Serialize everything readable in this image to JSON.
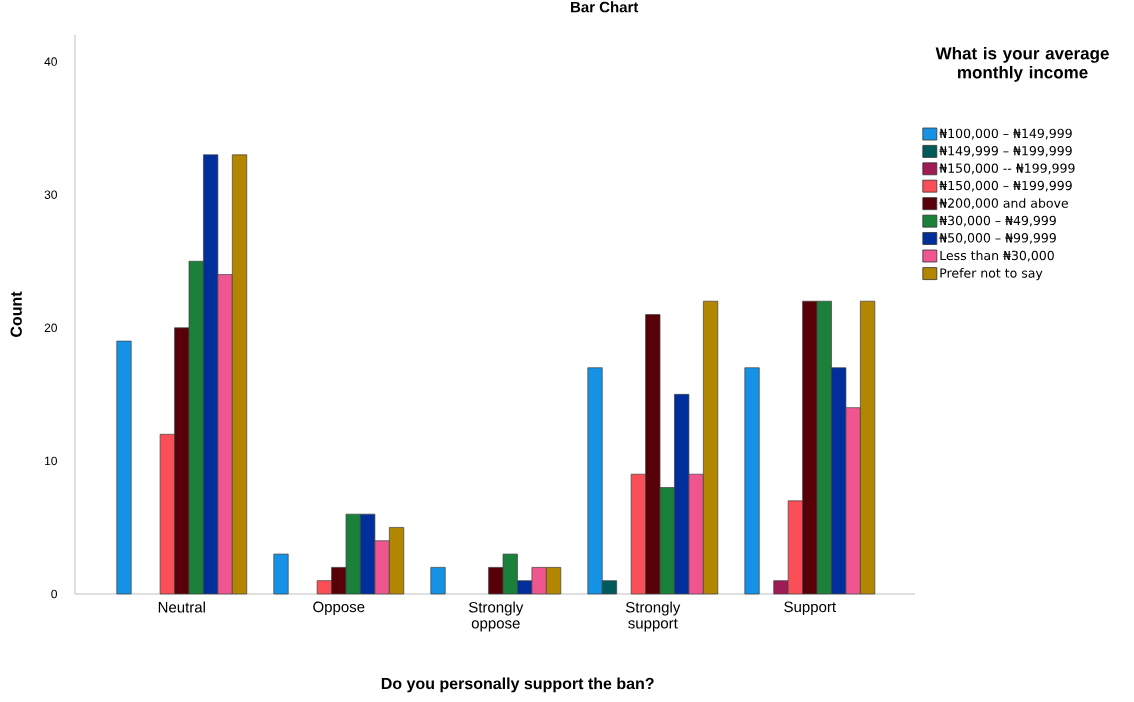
{
  "chart_data": {
    "type": "bar",
    "title": "Bar Chart",
    "xlabel": "Do you personally support the ban?",
    "ylabel": "Count",
    "legend_title": "What is your average monthly income",
    "categories": [
      "Neutral",
      "Oppose",
      "Strongly oppose",
      "Strongly support",
      "Support"
    ],
    "series": [
      {
        "name": "₦100,000 – ₦149,999",
        "color": "#1592e6",
        "values": [
          19,
          3,
          2,
          17,
          17
        ]
      },
      {
        "name": "₦149,999 – ₦199,999",
        "color": "#005a5a",
        "values": [
          null,
          null,
          null,
          1,
          null
        ]
      },
      {
        "name": "₦150,000 -- ₦199,999",
        "color": "#9e1b54",
        "values": [
          null,
          null,
          null,
          null,
          1
        ]
      },
      {
        "name": "₦150,000 – ₦199,999",
        "color": "#fb4f57",
        "values": [
          12,
          1,
          null,
          9,
          7
        ]
      },
      {
        "name": "₦200,000 and above",
        "color": "#570008",
        "values": [
          20,
          2,
          2,
          21,
          22
        ]
      },
      {
        "name": "₦30,000 – ₦49,999",
        "color": "#1b8039",
        "values": [
          25,
          6,
          3,
          8,
          22
        ]
      },
      {
        "name": "₦50,000 – ₦99,999",
        "color": "#002f9c",
        "values": [
          33,
          6,
          1,
          15,
          17
        ]
      },
      {
        "name": "Less than ₦30,000",
        "color": "#ef5690",
        "values": [
          24,
          4,
          2,
          9,
          14
        ]
      },
      {
        "name": "Prefer not to say",
        "color": "#b38600",
        "values": [
          33,
          5,
          2,
          22,
          22
        ]
      }
    ],
    "ylim": [
      0,
      42
    ],
    "yticks": [
      0,
      10,
      20,
      30,
      40
    ],
    "grid": false,
    "legend": "right"
  }
}
